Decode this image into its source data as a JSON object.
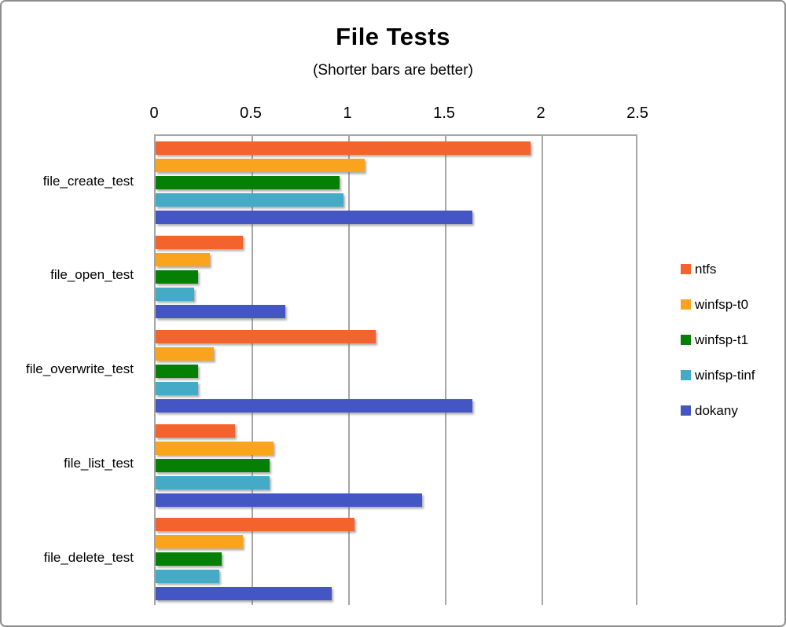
{
  "title": "File Tests",
  "subtitle": "(Shorter bars are better)",
  "chart_data": {
    "type": "bar",
    "orientation": "horizontal",
    "title": "File Tests",
    "subtitle": "(Shorter bars are better)",
    "categories": [
      "file_create_test",
      "file_open_test",
      "file_overwrite_test",
      "file_list_test",
      "file_delete_test"
    ],
    "series": [
      {
        "name": "ntfs",
        "color": "#F2632E",
        "values": [
          1.94,
          0.45,
          1.14,
          0.41,
          1.03
        ]
      },
      {
        "name": "winfsp-t0",
        "color": "#FAA41E",
        "values": [
          1.08,
          0.28,
          0.3,
          0.61,
          0.45
        ]
      },
      {
        "name": "winfsp-t1",
        "color": "#058005",
        "values": [
          0.95,
          0.22,
          0.22,
          0.59,
          0.34
        ]
      },
      {
        "name": "winfsp-tinf",
        "color": "#44ABC7",
        "values": [
          0.97,
          0.2,
          0.22,
          0.59,
          0.33
        ]
      },
      {
        "name": "dokany",
        "color": "#4456C4",
        "values": [
          1.64,
          0.67,
          1.64,
          1.38,
          0.91
        ]
      }
    ],
    "x_ticks": [
      0,
      0.5,
      1,
      1.5,
      2,
      2.5
    ],
    "x_tick_labels": [
      "0",
      "0.5",
      "1",
      "1.5",
      "2",
      "2.5"
    ],
    "xlim": [
      0,
      2.5
    ],
    "grid": true,
    "legend_position": "right",
    "colors": {
      "gridline": "#a6a6a6",
      "frame_border": "#8e8e8e",
      "background": "#ffffff"
    }
  }
}
